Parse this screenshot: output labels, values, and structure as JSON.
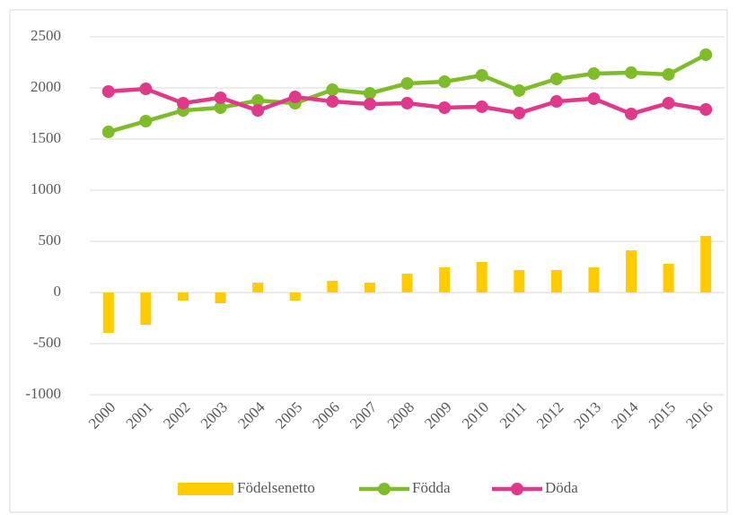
{
  "chart_data": {
    "type": "bar",
    "categories": [
      "2000",
      "2001",
      "2002",
      "2003",
      "2004",
      "2005",
      "2006",
      "2007",
      "2008",
      "2009",
      "2010",
      "2011",
      "2012",
      "2013",
      "2014",
      "2015",
      "2016"
    ],
    "series": [
      {
        "name": "Födelsenetto",
        "type": "bar",
        "color": "#ffcc00",
        "values": [
          -395,
          -316,
          -79,
          -105,
          96,
          -79,
          114,
          96,
          184,
          246,
          298,
          219,
          219,
          246,
          412,
          281,
          553
        ]
      },
      {
        "name": "Födda",
        "type": "line",
        "color": "#7fbc2a",
        "values": [
          1570,
          1675,
          1780,
          1807,
          1877,
          1850,
          1982,
          1947,
          2044,
          2061,
          2123,
          1974,
          2088,
          2140,
          2149,
          2132,
          2325
        ]
      },
      {
        "name": "Döda",
        "type": "line",
        "color": "#e0388a",
        "values": [
          1965,
          1991,
          1851,
          1904,
          1780,
          1912,
          1868,
          1842,
          1851,
          1807,
          1816,
          1754,
          1868,
          1895,
          1746,
          1851,
          1789
        ]
      }
    ],
    "ylim": [
      -1000,
      2500
    ],
    "yticks": [
      -1000,
      -500,
      0,
      500,
      1000,
      1500,
      2000,
      2500
    ],
    "grid": true,
    "legend": "bottom"
  }
}
